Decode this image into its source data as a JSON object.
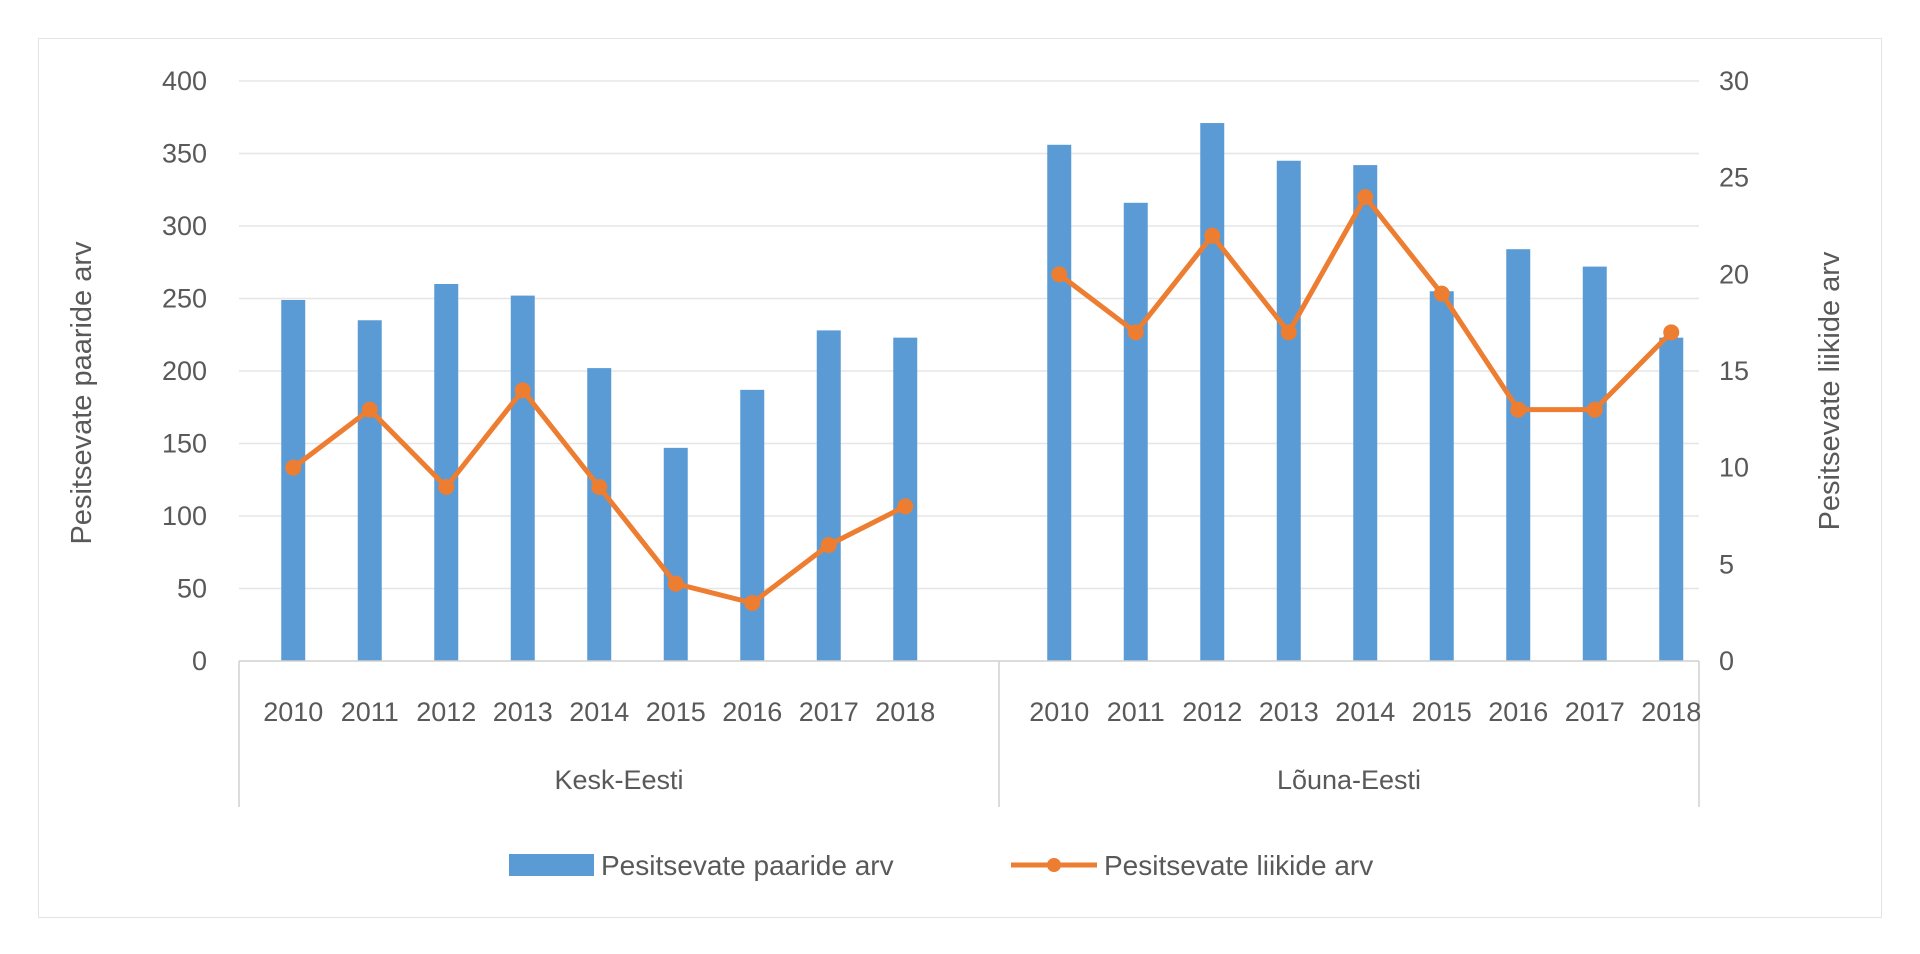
{
  "chart_data": {
    "type": "bar",
    "title": "",
    "groups": [
      "Kesk-Eesti",
      "Lõuna-Eesti"
    ],
    "categories": [
      "2010",
      "2011",
      "2012",
      "2013",
      "2014",
      "2015",
      "2016",
      "2017",
      "2018"
    ],
    "ylabel_left": "Pesitsevate paaride arv",
    "ylabel_right": "Pesitsevate liikide arv",
    "ylim_left": [
      0,
      400
    ],
    "ylim_right": [
      0,
      30
    ],
    "yticks_left": [
      "0",
      "50",
      "100",
      "150",
      "200",
      "250",
      "300",
      "350",
      "400"
    ],
    "yticks_right": [
      "0",
      "5",
      "10",
      "15",
      "20",
      "25",
      "30"
    ],
    "grid": true,
    "legend_position": "bottom",
    "series": [
      {
        "name": "Pesitsevate paaride arv",
        "type": "bar",
        "axis": "left",
        "color": "#5b9bd5",
        "values": [
          [
            249,
            235,
            260,
            252,
            202,
            147,
            187,
            228,
            223
          ],
          [
            356,
            316,
            371,
            345,
            342,
            255,
            284,
            272,
            223
          ]
        ]
      },
      {
        "name": "Pesitsevate liikide arv",
        "type": "line",
        "axis": "right",
        "color": "#ed7d31",
        "values": [
          [
            10,
            13,
            9,
            14,
            9,
            4,
            3,
            6,
            8
          ],
          [
            20,
            17,
            22,
            17,
            24,
            19,
            13,
            13,
            17
          ]
        ]
      }
    ]
  }
}
